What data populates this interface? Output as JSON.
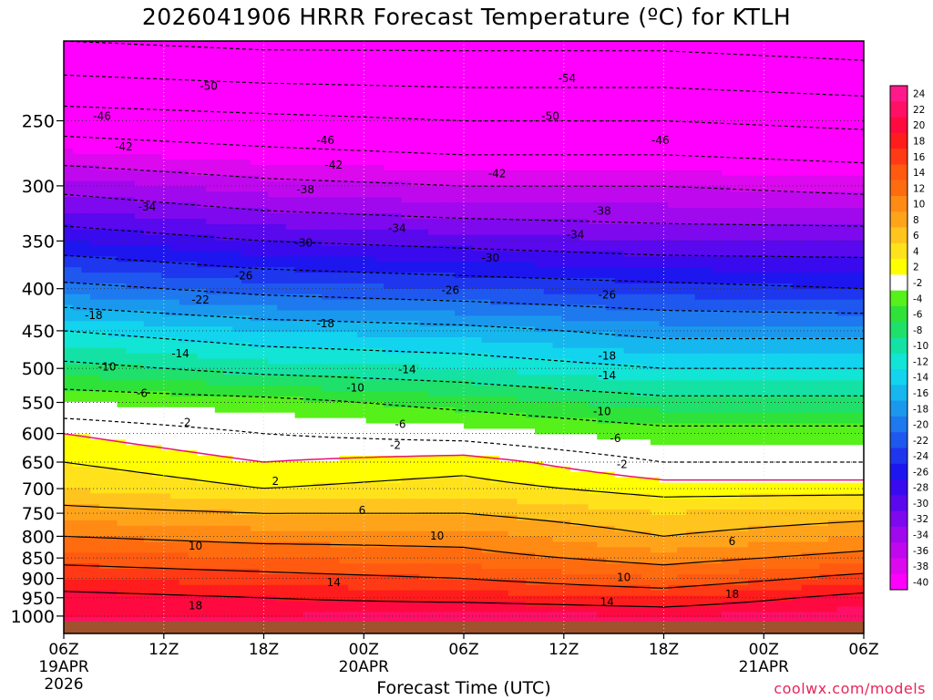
{
  "title": "2026041906 HRRR Forecast Temperature (ºC) for KTLH",
  "credit": "coolwx.com/models",
  "chart_data": {
    "type": "heatmap",
    "title": "2026041906 HRRR Forecast Temperature (ºC) for KTLH",
    "xlabel": "Forecast Time (UTC)",
    "ylabel": "",
    "y_scale": "log",
    "ylim": [
      1050,
      200
    ],
    "y_ticks": [
      250,
      300,
      350,
      400,
      450,
      500,
      550,
      600,
      650,
      700,
      750,
      800,
      850,
      900,
      950,
      1000
    ],
    "x_hours": [
      0,
      6,
      12,
      18,
      24,
      30,
      36,
      42,
      48
    ],
    "x_ticks": [
      {
        "label": "06Z",
        "date": "19APR",
        "year": "2026"
      },
      {
        "label": "12Z",
        "date": "",
        "year": ""
      },
      {
        "label": "18Z",
        "date": "",
        "year": ""
      },
      {
        "label": "00Z",
        "date": "20APR",
        "year": ""
      },
      {
        "label": "06Z",
        "date": "",
        "year": ""
      },
      {
        "label": "12Z",
        "date": "",
        "year": ""
      },
      {
        "label": "18Z",
        "date": "",
        "year": ""
      },
      {
        "label": "00Z",
        "date": "21APR",
        "year": ""
      },
      {
        "label": "06Z",
        "date": "",
        "year": ""
      }
    ],
    "colorbar": {
      "labels": [
        24,
        22,
        20,
        18,
        16,
        14,
        12,
        10,
        8,
        6,
        4,
        2,
        -2,
        -4,
        -6,
        -8,
        -10,
        -12,
        -14,
        -16,
        -18,
        -20,
        -22,
        -24,
        -26,
        -28,
        -30,
        -32,
        -34,
        -36,
        -38,
        -40
      ],
      "colors": [
        "#ff1a8c",
        "#ff1066",
        "#ff0a40",
        "#ff1c1c",
        "#ff3a14",
        "#ff5a10",
        "#ff6c10",
        "#ff8a14",
        "#ffa41a",
        "#ffc41e",
        "#ffe21c",
        "#ffff00",
        "#ffffff",
        "#56f01a",
        "#2ee23a",
        "#1ee06a",
        "#14e2a4",
        "#12e4d6",
        "#12d4ee",
        "#16b6ee",
        "#1a98ee",
        "#1e78ee",
        "#1e58ee",
        "#1e36ee",
        "#1e16ee",
        "#3a0aee",
        "#5a08ee",
        "#7e08ee",
        "#a008ee",
        "#c008ee",
        "#dc08ee",
        "#ff00ff"
      ]
    },
    "temperature_profile": {
      "pressure": [
        1000,
        950,
        900,
        850,
        800,
        750,
        700,
        650,
        600,
        550,
        500,
        450,
        400,
        350,
        300,
        250,
        200
      ],
      "series": [
        {
          "hour": 0,
          "temperature": [
            20,
            19,
            16,
            13,
            10,
            7,
            4,
            2,
            0,
            -4,
            -9,
            -14,
            -21,
            -28,
            -35,
            -44,
            -54
          ]
        },
        {
          "hour": 12,
          "temperature": [
            20,
            18,
            15,
            12,
            9,
            6,
            2,
            0,
            -2,
            -5,
            -11,
            -16,
            -23,
            -30,
            -37,
            -45,
            -55
          ]
        },
        {
          "hour": 24,
          "temperature": [
            21,
            17,
            14,
            11,
            9,
            6,
            3,
            1,
            -3,
            -7,
            -12,
            -17,
            -24,
            -31,
            -38,
            -46,
            -55
          ]
        },
        {
          "hour": 36,
          "temperature": [
            20,
            16,
            12,
            9,
            6,
            4,
            1,
            -2,
            -5,
            -9,
            -14,
            -19,
            -25,
            -32,
            -38,
            -46,
            -55
          ]
        },
        {
          "hour": 48,
          "temperature": [
            21,
            19,
            15,
            11,
            8,
            5,
            1,
            -2,
            -5,
            -9,
            -14,
            -19,
            -26,
            -32,
            -39,
            -47,
            -56
          ]
        }
      ]
    },
    "contour_labels": [
      {
        "text": "-54",
        "hour": 30.2,
        "p": 222
      },
      {
        "text": "-50",
        "hour": 8.7,
        "p": 227
      },
      {
        "text": "-50",
        "hour": 29.2,
        "p": 247
      },
      {
        "text": "-46",
        "hour": 2.3,
        "p": 247
      },
      {
        "text": "-46",
        "hour": 15.7,
        "p": 264
      },
      {
        "text": "-46",
        "hour": 35.8,
        "p": 264
      },
      {
        "text": "-42",
        "hour": 3.6,
        "p": 269
      },
      {
        "text": "-42",
        "hour": 16.2,
        "p": 283
      },
      {
        "text": "-42",
        "hour": 26.0,
        "p": 290
      },
      {
        "text": "-38",
        "hour": 14.5,
        "p": 303
      },
      {
        "text": "-38",
        "hour": 32.3,
        "p": 322
      },
      {
        "text": "-34",
        "hour": 5.0,
        "p": 318
      },
      {
        "text": "-34",
        "hour": 20.0,
        "p": 338
      },
      {
        "text": "-34",
        "hour": 30.7,
        "p": 344
      },
      {
        "text": "-30",
        "hour": 14.4,
        "p": 352
      },
      {
        "text": "-30",
        "hour": 25.6,
        "p": 367
      },
      {
        "text": "-26",
        "hour": 10.8,
        "p": 386
      },
      {
        "text": "-26",
        "hour": 23.2,
        "p": 402
      },
      {
        "text": "-26",
        "hour": 32.6,
        "p": 407
      },
      {
        "text": "-22",
        "hour": 8.2,
        "p": 413
      },
      {
        "text": "-18",
        "hour": 1.8,
        "p": 431
      },
      {
        "text": "-18",
        "hour": 15.7,
        "p": 441
      },
      {
        "text": "-18",
        "hour": 32.6,
        "p": 483
      },
      {
        "text": "-14",
        "hour": 7.0,
        "p": 480
      },
      {
        "text": "-14",
        "hour": 20.6,
        "p": 502
      },
      {
        "text": "-14",
        "hour": 32.6,
        "p": 510
      },
      {
        "text": "-10",
        "hour": 2.6,
        "p": 498
      },
      {
        "text": "-10",
        "hour": 17.5,
        "p": 528
      },
      {
        "text": "-10",
        "hour": 32.3,
        "p": 564
      },
      {
        "text": "-6",
        "hour": 4.7,
        "p": 536
      },
      {
        "text": "-6",
        "hour": 20.2,
        "p": 585
      },
      {
        "text": "-6",
        "hour": 33.1,
        "p": 608
      },
      {
        "text": "-2",
        "hour": 7.3,
        "p": 582
      },
      {
        "text": "-2",
        "hour": 19.9,
        "p": 620
      },
      {
        "text": "-2",
        "hour": 33.5,
        "p": 654
      },
      {
        "text": "2",
        "hour": 12.7,
        "p": 686
      },
      {
        "text": "6",
        "hour": 17.9,
        "p": 744
      },
      {
        "text": "6",
        "hour": 40.1,
        "p": 812
      },
      {
        "text": "10",
        "hour": 7.9,
        "p": 822
      },
      {
        "text": "10",
        "hour": 22.4,
        "p": 799
      },
      {
        "text": "10",
        "hour": 33.6,
        "p": 898
      },
      {
        "text": "14",
        "hour": 16.2,
        "p": 910
      },
      {
        "text": "14",
        "hour": 32.6,
        "p": 962
      },
      {
        "text": "18",
        "hour": 7.9,
        "p": 972
      },
      {
        "text": "18",
        "hour": 40.1,
        "p": 941
      }
    ]
  }
}
